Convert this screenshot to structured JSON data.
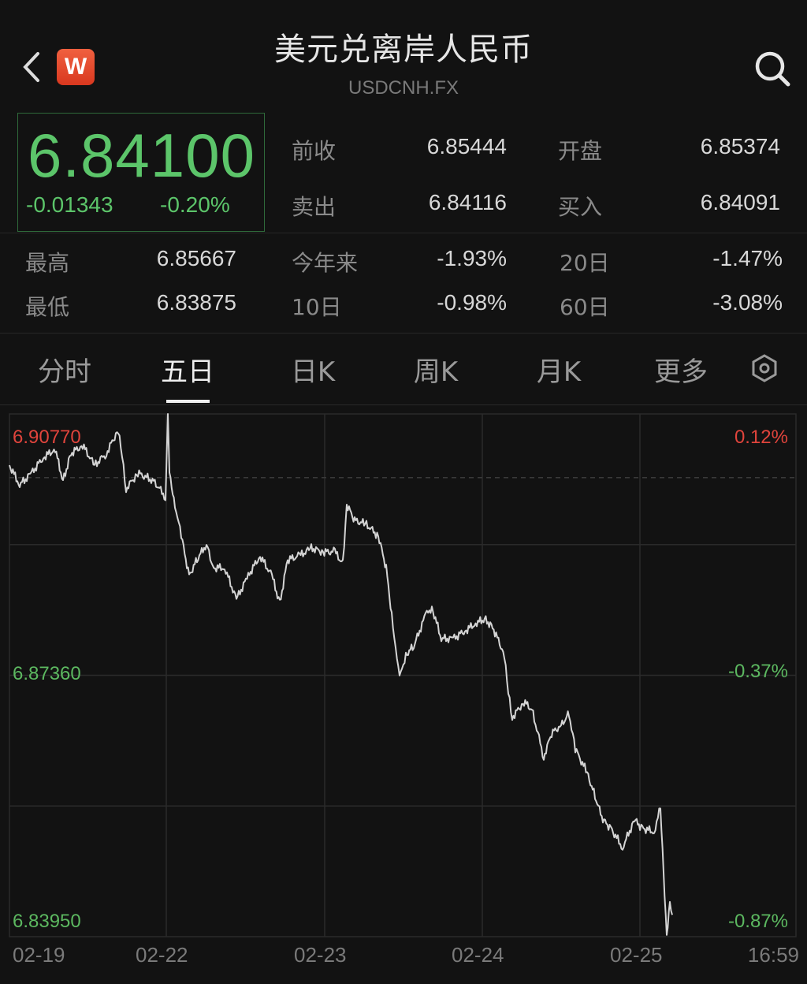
{
  "header": {
    "title": "美元兑离岸人民币",
    "symbol": "USDCNH.FX",
    "back_icon": "chevron-left-icon",
    "logo_letter": "W",
    "search_icon": "search-icon"
  },
  "quote": {
    "price": "6.84100",
    "change": "-0.01343",
    "change_pct": "-0.20%",
    "color": "#5cc56a"
  },
  "stats": [
    {
      "label": "前收",
      "value": "6.85444"
    },
    {
      "label": "开盘",
      "value": "6.85374"
    },
    {
      "label": "卖出",
      "value": "6.84116"
    },
    {
      "label": "买入",
      "value": "6.84091"
    },
    {
      "label": "最高",
      "value": "6.85667"
    },
    {
      "label": "今年来",
      "value": "-1.93%"
    },
    {
      "label": "20日",
      "value": "-1.47%"
    },
    {
      "label": "最低",
      "value": "6.83875"
    },
    {
      "label": "10日",
      "value": "-0.98%"
    },
    {
      "label": "60日",
      "value": "-3.08%"
    }
  ],
  "tabs": [
    {
      "label": "分时"
    },
    {
      "label": "五日",
      "active": true
    },
    {
      "label": "日K"
    },
    {
      "label": "周K"
    },
    {
      "label": "月K"
    },
    {
      "label": "更多"
    }
  ],
  "settings_icon": "hexagon-settings-icon",
  "chart_data": {
    "type": "line",
    "ylim": [
      6.8395,
      6.9077
    ],
    "y_ticks_left": [
      "6.90770",
      "6.87360",
      "6.83950"
    ],
    "y_ticks_right": [
      "0.12%",
      "-0.37%",
      "-0.87%"
    ],
    "x_ticks": [
      "02-19",
      "02-22",
      "02-23",
      "02-24",
      "02-25"
    ],
    "x_end_label": "16:59",
    "reference_line": 6.8994,
    "colors": {
      "up": "#e0443c",
      "down": "#5cb860",
      "line": "#d4d4d4"
    },
    "values": [
      6.90101,
      6.89844,
      6.89998,
      6.90204,
      6.90307,
      6.89896,
      6.90256,
      6.90359,
      6.90101,
      6.90256,
      6.90564,
      6.90204,
      6.89793,
      6.89998,
      6.89896,
      6.8969,
      6.9077,
      6.89998,
      6.89587,
      6.89176,
      6.88661,
      6.88867,
      6.89073,
      6.88764,
      6.88764,
      6.88353,
      6.88661,
      6.88918,
      6.88661,
      6.88301,
      6.88867,
      6.88918,
      6.89021,
      6.8897,
      6.8897,
      6.88815,
      6.89587,
      6.89381,
      6.8933,
      6.89176,
      6.88764,
      6.88147,
      6.87735,
      6.87324,
      6.87632,
      6.87735,
      6.88147,
      6.8825,
      6.87838,
      6.87838,
      6.87941,
      6.88044,
      6.88095,
      6.87993,
      6.87632,
      6.87118,
      6.8681,
      6.87015,
      6.86912,
      6.86295,
      6.86604,
      6.86707,
      6.86861,
      6.86398,
      6.86089,
      6.85781,
      6.85472,
      6.85369,
      6.85112,
      6.85472,
      6.85369,
      6.85318,
      6.85626,
      6.84752,
      6.83981,
      6.84392,
      6.84186
    ]
  }
}
